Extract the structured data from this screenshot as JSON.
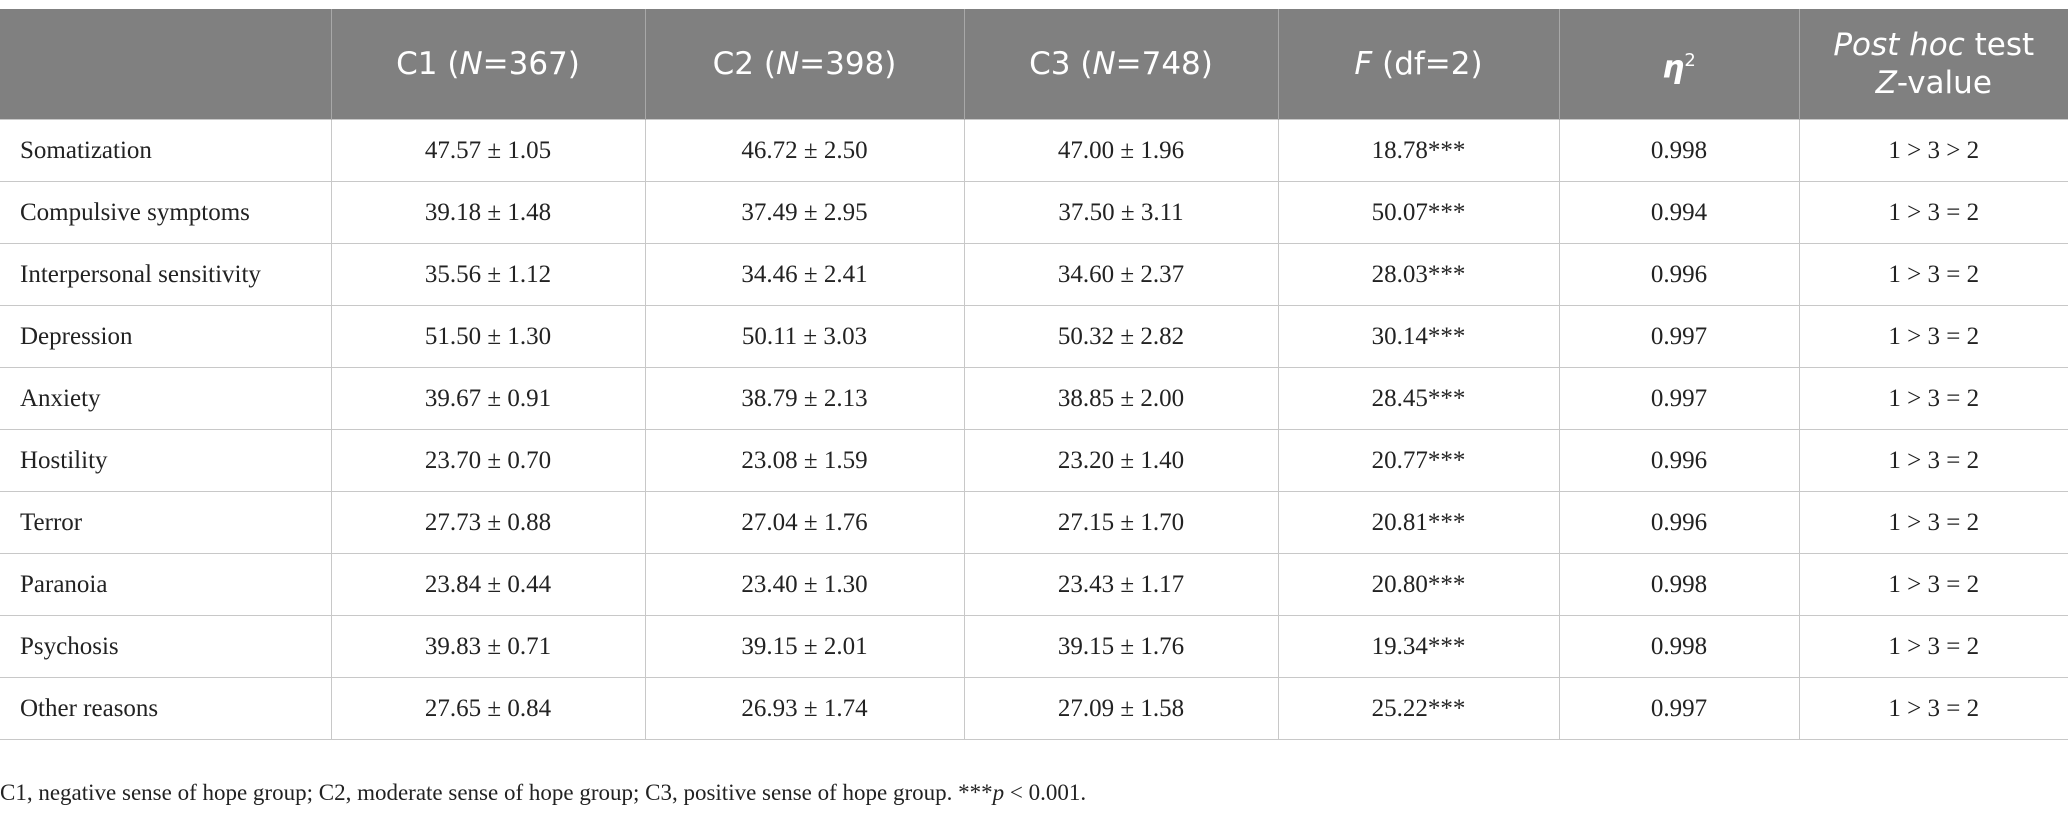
{
  "table": {
    "header": [
      [
        [
          {
            "text": ""
          }
        ]
      ],
      [
        [
          {
            "text": "C1 ("
          },
          {
            "text": "N",
            "italic": true
          },
          {
            "text": "=367)"
          }
        ]
      ],
      [
        [
          {
            "text": "C2 ("
          },
          {
            "text": "N",
            "italic": true
          },
          {
            "text": "=398)"
          }
        ]
      ],
      [
        [
          {
            "text": "C3 ("
          },
          {
            "text": "N",
            "italic": true
          },
          {
            "text": "=748)"
          }
        ]
      ],
      [
        [
          {
            "text": "F",
            "italic": true
          },
          {
            "text": " (df=2)"
          }
        ]
      ],
      [
        [
          {
            "text": "η",
            "italic": true,
            "bold": true
          },
          {
            "text": "2",
            "sup": true
          }
        ]
      ],
      [
        [
          {
            "text": "Post hoc",
            "italic": true
          },
          {
            "text": " test"
          }
        ],
        [
          {
            "text": "Z",
            "italic": true
          },
          {
            "text": "-value"
          }
        ]
      ]
    ],
    "rows": [
      [
        "Somatization",
        "47.57 ± 1.05",
        "46.72 ± 2.50",
        "47.00 ± 1.96",
        "18.78***",
        "0.998",
        "1 > 3 > 2"
      ],
      [
        "Compulsive symptoms",
        "39.18 ± 1.48",
        "37.49 ± 2.95",
        "37.50 ± 3.11",
        "50.07***",
        "0.994",
        "1 > 3 = 2"
      ],
      [
        "Interpersonal sensitivity",
        "35.56 ± 1.12",
        "34.46 ± 2.41",
        "34.60 ± 2.37",
        "28.03***",
        "0.996",
        "1 > 3 = 2"
      ],
      [
        "Depression",
        "51.50 ± 1.30",
        "50.11 ± 3.03",
        "50.32 ± 2.82",
        "30.14***",
        "0.997",
        "1 > 3 = 2"
      ],
      [
        "Anxiety",
        "39.67 ± 0.91",
        "38.79 ± 2.13",
        "38.85 ± 2.00",
        "28.45***",
        "0.997",
        "1 > 3 = 2"
      ],
      [
        "Hostility",
        "23.70 ± 0.70",
        "23.08 ± 1.59",
        "23.20 ± 1.40",
        "20.77***",
        "0.996",
        "1 > 3 = 2"
      ],
      [
        "Terror",
        "27.73 ± 0.88",
        "27.04 ± 1.76",
        "27.15 ± 1.70",
        "20.81***",
        "0.996",
        "1 > 3 = 2"
      ],
      [
        "Paranoia",
        "23.84 ± 0.44",
        "23.40 ± 1.30",
        "23.43 ± 1.17",
        "20.80***",
        "0.998",
        "1 > 3 = 2"
      ],
      [
        "Psychosis",
        "39.83 ± 0.71",
        "39.15 ± 2.01",
        "39.15 ± 1.76",
        "19.34***",
        "0.998",
        "1 > 3 = 2"
      ],
      [
        "Other reasons",
        "27.65 ± 0.84",
        "26.93 ± 1.74",
        "27.09 ± 1.58",
        "25.22***",
        "0.997",
        "1 > 3 = 2"
      ]
    ]
  },
  "footnote": [
    {
      "text": "C1, negative sense of hope group; C2, moderate sense of hope group; C3, positive sense of hope group. ***"
    },
    {
      "text": "p",
      "italic": true
    },
    {
      "text": " < 0.001."
    }
  ]
}
